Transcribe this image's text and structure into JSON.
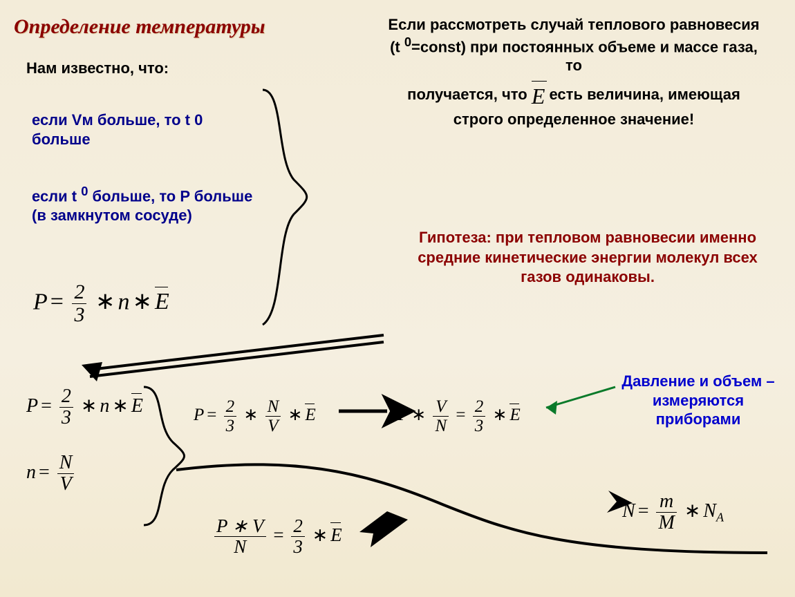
{
  "title": "Определение температуры",
  "known_label": "Нам известно, что:",
  "bullet1": "если Vм больше, то t 0 больше",
  "bullet2_html": "если t <sup>0</sup> больше, то P больше<br>(в замкнутом сосуде)",
  "right_top_1_html": "Если рассмотреть случай теплового равновесия<br>(t <sup>0</sup>=const) при постоянных объеме и массе газа, то",
  "right_top_2_prefix": "получается, что ",
  "right_top_2_suffix": " есть величина, имеющая строго определенное значение!",
  "hypothesis": "Гипотеза: при тепловом равновесии именно средние кинетические энергии молекул всех газов одинаковы.",
  "measure_note": "Давление и объем – измеряются приборами",
  "formulas": {
    "main": {
      "lhs": "P",
      "rhs": "(2/3) * n * E̅"
    },
    "p2": {
      "lhs": "P",
      "rhs": "(2/3) * n * E̅"
    },
    "n_def": {
      "lhs": "n",
      "rhs": "N / V"
    },
    "p3": {
      "lhs": "P",
      "rhs": "(2/3) * (N/V) * E̅"
    },
    "p4": {
      "lhs": "P * (V/N)",
      "rhs": "(2/3) * E̅"
    },
    "pvn": {
      "lhs": "(P*V)/N",
      "rhs": "(2/3) * E̅"
    },
    "N_def": {
      "lhs": "N",
      "rhs": "(m/M) * N_A"
    }
  },
  "colors": {
    "title": "#8b0000",
    "bullets": "#00008b",
    "hypothesis": "#8b0000",
    "measure_note": "#0000cd",
    "body_text": "#000000",
    "bg_top": "#f3ecd9",
    "bg_bottom": "#f2e9d0",
    "arrow": "#000000"
  },
  "font_sizes": {
    "title": 30,
    "body": 22,
    "formula_main": 34,
    "formula_small": 25
  }
}
